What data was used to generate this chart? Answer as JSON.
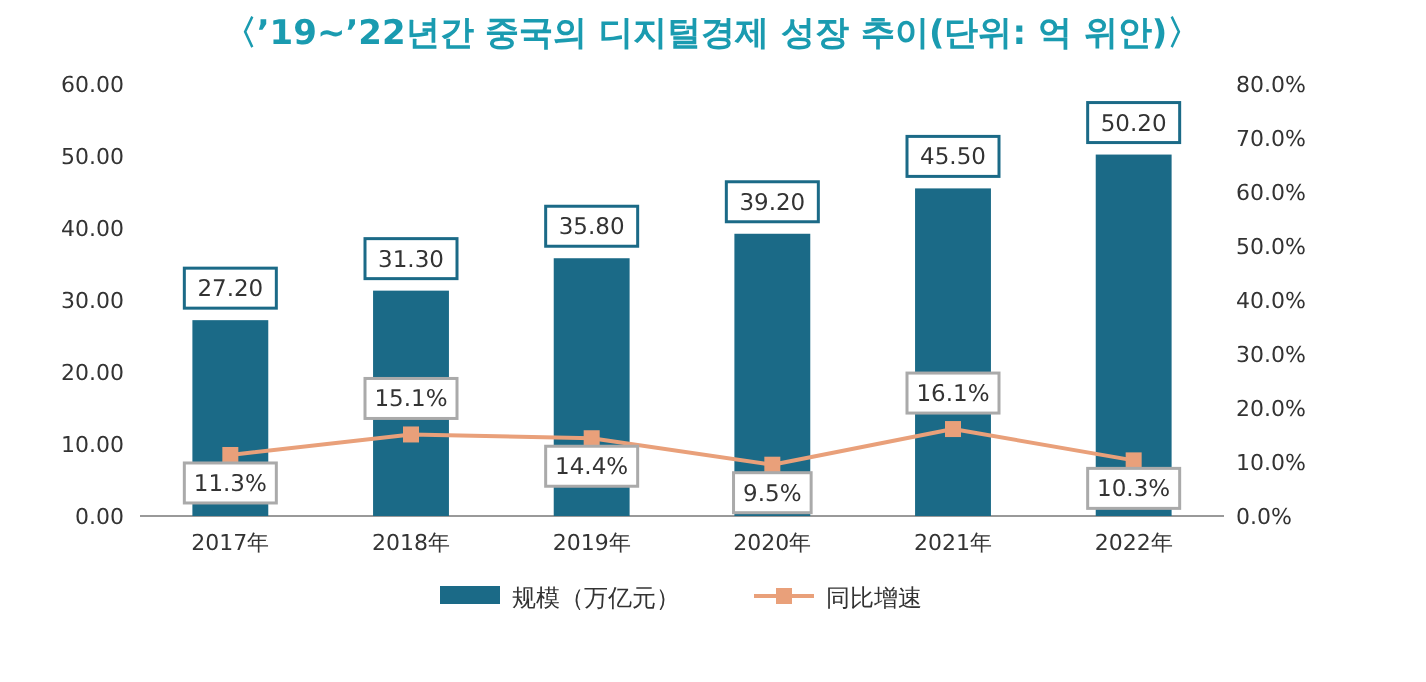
{
  "chart_data": {
    "type": "bar",
    "title": "〈’19~’22년간 중국의 디지털경제 성장 추이(단위: 억 위안)〉",
    "categories": [
      "2017年",
      "2018年",
      "2019年",
      "2020年",
      "2021年",
      "2022年"
    ],
    "series": [
      {
        "name": "规模（万亿元）",
        "color": "#1b6a87",
        "values": [
          27.2,
          31.3,
          35.8,
          39.2,
          45.5,
          50.2
        ],
        "value_labels": [
          "27.20",
          "31.30",
          "35.80",
          "39.20",
          "45.50",
          "50.20"
        ]
      },
      {
        "name": "同比增速",
        "type": "line",
        "axis": "y2",
        "color": "#e9a07a",
        "values": [
          11.3,
          15.1,
          14.4,
          9.5,
          16.1,
          10.3
        ],
        "value_labels": [
          "11.3%",
          "15.1%",
          "14.4%",
          "9.5%",
          "16.1%",
          "10.3%"
        ]
      }
    ],
    "ylim": [
      0,
      60
    ],
    "yticks": [
      {
        "value": 0,
        "label": "0.00"
      },
      {
        "value": 10,
        "label": "10.00"
      },
      {
        "value": 20,
        "label": "20.00"
      },
      {
        "value": 30,
        "label": "30.00"
      },
      {
        "value": 40,
        "label": "40.00"
      },
      {
        "value": 50,
        "label": "50.00"
      },
      {
        "value": 60,
        "label": "60.00"
      }
    ],
    "y2lim": [
      0,
      80
    ],
    "y2ticks": [
      {
        "value": 0,
        "label": "0.0%"
      },
      {
        "value": 10,
        "label": "10.0%"
      },
      {
        "value": 20,
        "label": "20.0%"
      },
      {
        "value": 30,
        "label": "30.0%"
      },
      {
        "value": 40,
        "label": "40.0%"
      },
      {
        "value": 50,
        "label": "50.0%"
      },
      {
        "value": 60,
        "label": "60.0%"
      },
      {
        "value": 70,
        "label": "70.0%"
      },
      {
        "value": 80,
        "label": "80.0%"
      }
    ],
    "marker": "square",
    "legend": "bottom"
  }
}
